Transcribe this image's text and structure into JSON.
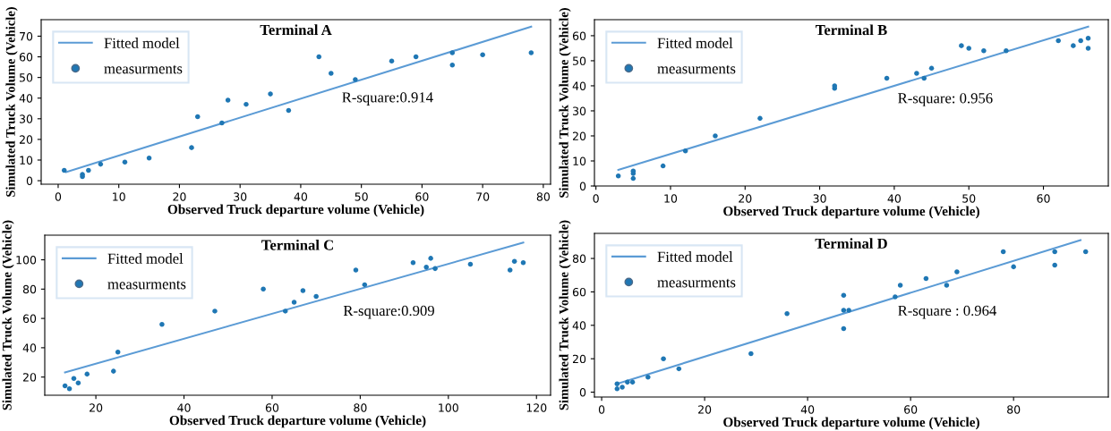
{
  "chart_data": [
    {
      "type": "scatter",
      "title": "Terminal A",
      "xlabel": "Observed Truck departure volume (Vehicle)",
      "ylabel": "Simulated Truck Volume (Vehicle)",
      "annotations": [
        "R-square:0.914"
      ],
      "legend": "top left",
      "grid": false,
      "xlim": [
        -2.8,
        81.2
      ],
      "ylim": [
        -1.7,
        78
      ],
      "xticks": [
        0,
        10,
        20,
        30,
        40,
        50,
        60,
        70,
        80
      ],
      "yticks": [
        0,
        10,
        20,
        30,
        40,
        50,
        60,
        70
      ],
      "series": [
        {
          "name": "Fitted model",
          "type": "line",
          "color": "#5b9bd5",
          "marker": "none",
          "line_style": "solid",
          "x": [
            1.3,
            78
          ],
          "values": [
            4.2,
            74.6
          ]
        },
        {
          "name": "measurments",
          "color": "#1f77b4",
          "marker": "circle",
          "x": [
            1,
            4,
            4,
            5,
            7,
            11,
            15,
            22,
            23,
            27,
            28,
            31,
            35,
            38,
            43,
            45,
            49,
            55,
            59,
            65,
            65,
            70,
            78
          ],
          "values": [
            5,
            3,
            2,
            5,
            8,
            9,
            11,
            16,
            31,
            28,
            39,
            37,
            42,
            34,
            60,
            52,
            49,
            58,
            60,
            62,
            56,
            61,
            62
          ]
        }
      ]
    },
    {
      "type": "scatter",
      "title": "Terminal B",
      "xlabel": "Observed Truck departure volume (Vehicle)",
      "ylabel": "Simulated Truck Volume (Vehicle)",
      "annotations": [
        "R-square: 0.956"
      ],
      "legend": "top left",
      "grid": false,
      "xlim": [
        -0.2,
        68.7
      ],
      "ylim": [
        0,
        66.4
      ],
      "xticks": [
        0,
        10,
        20,
        30,
        40,
        50,
        60
      ],
      "yticks": [
        0,
        10,
        20,
        30,
        40,
        50,
        60
      ],
      "series": [
        {
          "name": "Fitted model",
          "type": "line",
          "color": "#5b9bd5",
          "marker": "none",
          "line_style": "solid",
          "x": [
            3,
            66
          ],
          "values": [
            6.4,
            63.6
          ]
        },
        {
          "name": "measurments",
          "color": "#1f77b4",
          "marker": "circle",
          "x": [
            3,
            5,
            5,
            5,
            9,
            12,
            16,
            22,
            32,
            32,
            39,
            43,
            44,
            45,
            49,
            50,
            52,
            55,
            62,
            64,
            65,
            66,
            66
          ],
          "values": [
            4,
            6,
            5,
            3,
            8,
            14,
            20,
            27,
            40,
            39,
            43,
            45,
            43,
            47,
            56,
            55,
            54,
            54,
            58,
            56,
            58,
            59,
            55
          ]
        }
      ]
    },
    {
      "type": "scatter",
      "title": "Terminal C",
      "xlabel": "Observed Truck departure volume (Vehicle)",
      "ylabel": "Simulated Truck Volume (Vehicle)",
      "annotations": [
        "R-square:0.909"
      ],
      "legend": "top left",
      "grid": false,
      "xlim": [
        8.4,
        123.2
      ],
      "ylim": [
        7.6,
        116.8
      ],
      "xticks": [
        20,
        40,
        60,
        80,
        100,
        120
      ],
      "yticks": [
        20,
        40,
        60,
        80,
        100
      ],
      "series": [
        {
          "name": "Fitted model",
          "type": "line",
          "color": "#5b9bd5",
          "marker": "none",
          "line_style": "solid",
          "x": [
            13,
            117
          ],
          "values": [
            23.2,
            111.7
          ]
        },
        {
          "name": "measurments",
          "color": "#1f77b4",
          "marker": "circle",
          "x": [
            13,
            14,
            15,
            16,
            18,
            24,
            25,
            35,
            47,
            58,
            63,
            65,
            67,
            70,
            79,
            81,
            92,
            95,
            96,
            97,
            105,
            114,
            115,
            117
          ],
          "values": [
            14,
            12,
            19,
            16,
            22,
            24,
            37,
            56,
            65,
            80,
            65,
            71,
            79,
            75,
            93,
            83,
            98,
            95,
            101,
            94,
            97,
            93,
            99,
            98
          ]
        }
      ]
    },
    {
      "type": "scatter",
      "title": "Terminal D",
      "xlabel": "Observed Truck departure volume (Vehicle)",
      "ylabel": "Simulated Truck Volume (Vehicle)",
      "annotations": [
        "R-square : 0.964"
      ],
      "legend": "top left",
      "grid": false,
      "xlim": [
        -1.4,
        98.4
      ],
      "ylim": [
        -2.9,
        95
      ],
      "xticks": [
        0,
        20,
        40,
        60,
        80
      ],
      "yticks": [
        0,
        20,
        40,
        60,
        80
      ],
      "series": [
        {
          "name": "Fitted model",
          "type": "line",
          "color": "#5b9bd5",
          "marker": "none",
          "line_style": "solid",
          "x": [
            3,
            93
          ],
          "values": [
            5,
            91
          ]
        },
        {
          "name": "measurments",
          "color": "#1f77b4",
          "marker": "circle",
          "x": [
            3,
            3,
            4,
            5,
            6,
            9,
            12,
            15,
            29,
            36,
            47,
            47,
            47,
            48,
            57,
            58,
            63,
            67,
            69,
            78,
            80,
            88,
            88,
            94
          ],
          "values": [
            5,
            2,
            3,
            6,
            6,
            9,
            20,
            14,
            23,
            47,
            58,
            49,
            38,
            49,
            57,
            64,
            68,
            64,
            72,
            84,
            75,
            84,
            76,
            84
          ]
        }
      ]
    }
  ]
}
